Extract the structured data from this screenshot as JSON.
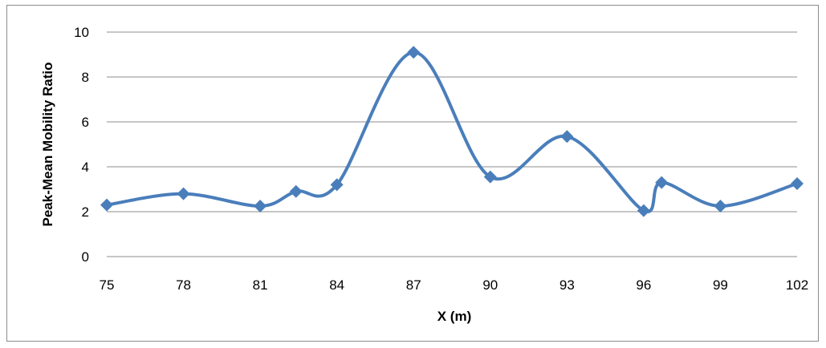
{
  "chart_data": {
    "type": "line",
    "title": "",
    "xlabel": "X (m)",
    "ylabel": "Peak-Mean Mobility Ratio",
    "xlim": [
      75,
      102
    ],
    "ylim": [
      0,
      10
    ],
    "x_ticks": [
      75,
      78,
      81,
      84,
      87,
      90,
      93,
      96,
      99,
      102
    ],
    "y_ticks": [
      0,
      2,
      4,
      6,
      8,
      10
    ],
    "grid": true,
    "smoothed": true,
    "marker": "diamond",
    "color": "#4A7EBB",
    "series": [
      {
        "x": [
          75,
          78,
          81,
          82.4,
          84,
          87,
          90,
          93,
          96,
          96.7,
          99,
          102
        ],
        "y": [
          2.3,
          2.8,
          2.25,
          2.9,
          3.2,
          9.1,
          3.55,
          5.35,
          2.05,
          3.3,
          2.25,
          3.25
        ]
      }
    ]
  }
}
